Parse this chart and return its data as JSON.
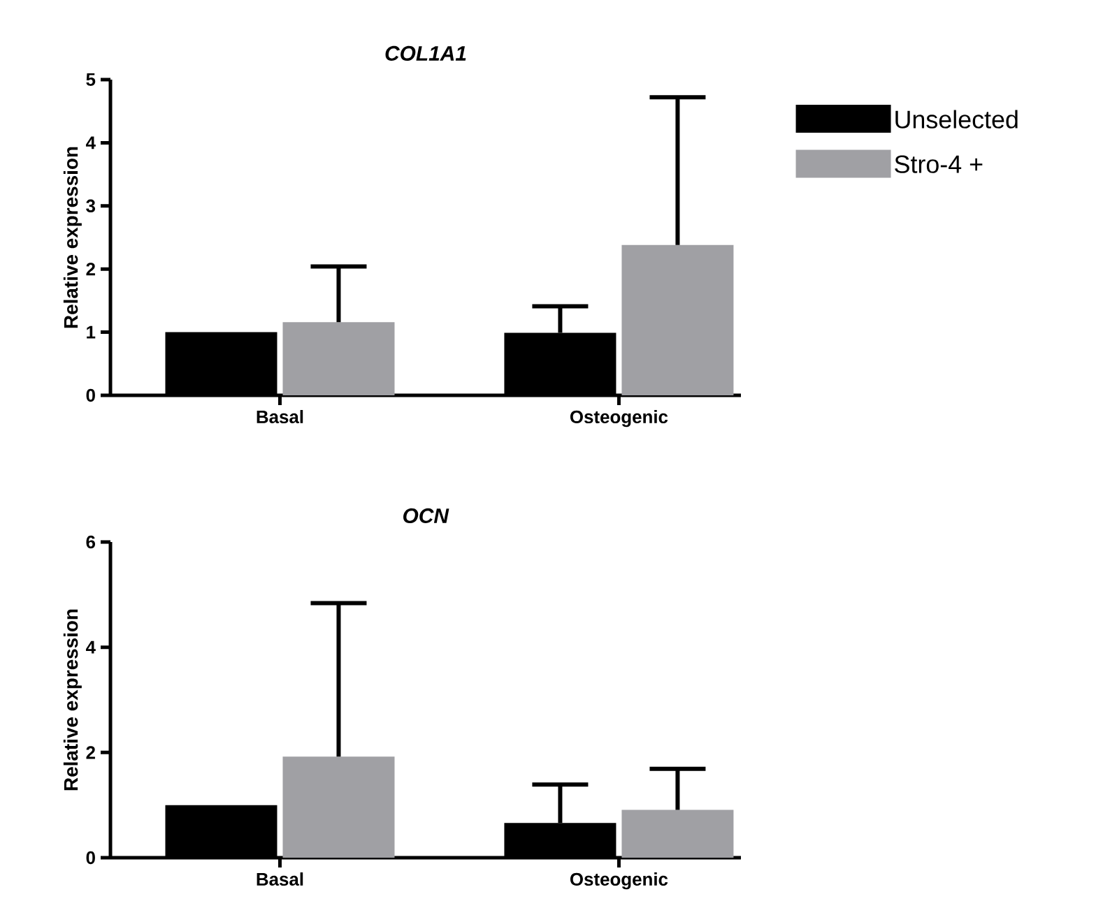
{
  "chart_data": [
    {
      "type": "bar",
      "title": "*COL1A1*",
      "ylabel": "Relative expression",
      "categories": [
        "Basal",
        "Osteogenic"
      ],
      "ylim": [
        0,
        5
      ],
      "yticks": [
        0,
        1,
        2,
        3,
        4,
        5
      ],
      "legend": "right",
      "series": [
        {
          "name": "Unselected",
          "color": "#000000",
          "values": [
            1.0,
            0.99
          ],
          "errors": [
            null,
            [
              0.99,
              1.41
            ]
          ]
        },
        {
          "name": "Stro-4 +",
          "color": "#a0a0a4",
          "values": [
            1.16,
            2.38
          ],
          "errors": [
            [
              1.16,
              2.04
            ],
            [
              2.38,
              4.72
            ]
          ]
        }
      ]
    },
    {
      "type": "bar",
      "title": "*OCN*",
      "ylabel": "Relative expression",
      "categories": [
        "Basal",
        "Osteogenic"
      ],
      "ylim": [
        0,
        6
      ],
      "yticks": [
        0,
        2,
        4,
        6
      ],
      "series": [
        {
          "color": "#000000",
          "values": [
            1.0,
            0.66
          ],
          "errors": [
            null,
            [
              0.66,
              1.39
            ]
          ]
        },
        {
          "color": "#a0a0a4",
          "values": [
            1.92,
            0.91
          ],
          "errors": [
            [
              1.92,
              4.84
            ],
            [
              0.91,
              1.69
            ]
          ]
        }
      ]
    }
  ]
}
